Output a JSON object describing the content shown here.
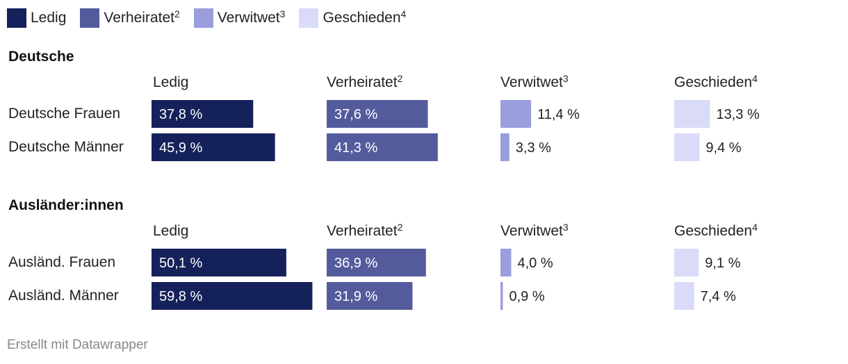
{
  "legend": {
    "items": [
      {
        "label": "Ledig",
        "sup": "",
        "color": "#15215a"
      },
      {
        "label": "Verheiratet",
        "sup": "2",
        "color": "#545b9c"
      },
      {
        "label": "Verwitwet",
        "sup": "3",
        "color": "#9a9edd"
      },
      {
        "label": "Geschieden",
        "sup": "4",
        "color": "#d9dbf8"
      }
    ]
  },
  "chart_data": {
    "type": "bar",
    "unit": "%",
    "columns": [
      {
        "label": "Ledig",
        "sup": "",
        "color": "#15215a"
      },
      {
        "label": "Verheiratet",
        "sup": "2",
        "color": "#545b9c"
      },
      {
        "label": "Verwitwet",
        "sup": "3",
        "color": "#9a9edd"
      },
      {
        "label": "Geschieden",
        "sup": "4",
        "color": "#d9dbf8"
      }
    ],
    "groups": [
      {
        "title": "Deutsche",
        "rows": [
          {
            "label": "Deutsche Frauen",
            "values": [
              37.8,
              37.6,
              11.4,
              13.3
            ],
            "labels": [
              "37,8 %",
              "37,6 %",
              "11,4 %",
              "13,3 %"
            ]
          },
          {
            "label": "Deutsche Männer",
            "values": [
              45.9,
              41.3,
              3.3,
              9.4
            ],
            "labels": [
              "45,9 %",
              "41,3 %",
              "3,3 %",
              "9,4 %"
            ]
          }
        ]
      },
      {
        "title": "Ausländer:innen",
        "rows": [
          {
            "label": "Ausländ. Frauen",
            "values": [
              50.1,
              36.9,
              4.0,
              9.1
            ],
            "labels": [
              "50,1 %",
              "36,9 %",
              "4,0 %",
              "9,1 %"
            ]
          },
          {
            "label": "Ausländ. Männer",
            "values": [
              59.8,
              31.9,
              0.9,
              7.4
            ],
            "labels": [
              "59,8 %",
              "31,9 %",
              "0,9 %",
              "7,4 %"
            ]
          }
        ]
      }
    ]
  },
  "footer": {
    "credit": "Erstellt mit Datawrapper"
  }
}
